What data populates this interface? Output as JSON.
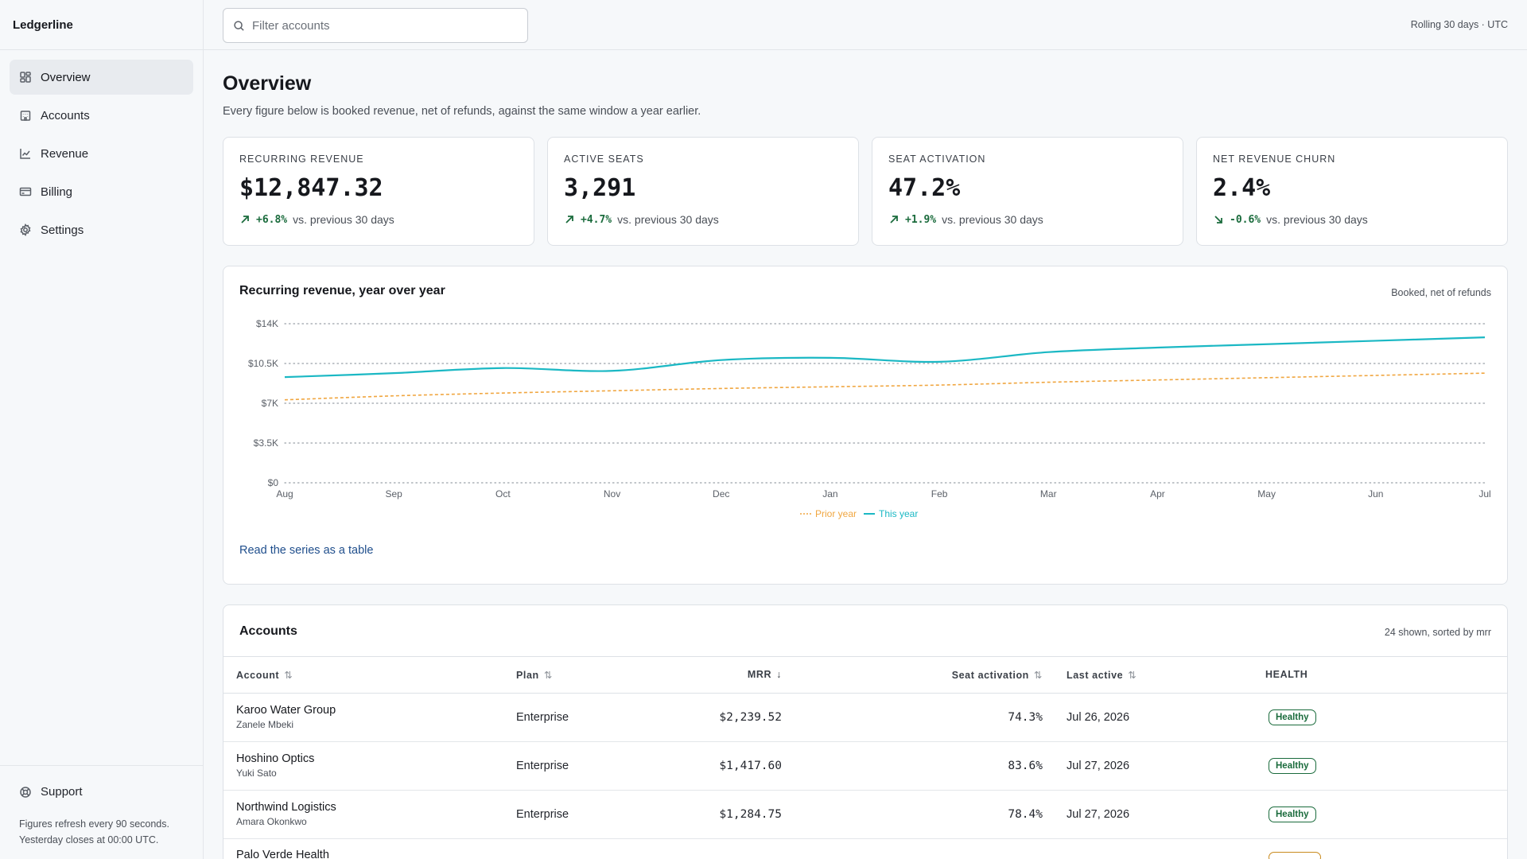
{
  "app": {
    "name": "Ledgerline"
  },
  "sidebar": {
    "items": [
      {
        "label": "Overview",
        "icon": "dashboard-icon",
        "active": true
      },
      {
        "label": "Accounts",
        "icon": "building-icon"
      },
      {
        "label": "Revenue",
        "icon": "line-chart-icon"
      },
      {
        "label": "Billing",
        "icon": "credit-card-icon"
      },
      {
        "label": "Settings",
        "icon": "gear-icon"
      }
    ],
    "support_label": "Support",
    "note_line1": "Figures refresh every 90 seconds.",
    "note_line2": "Yesterday closes at 00:00 UTC."
  },
  "topbar": {
    "search_placeholder": "Filter accounts",
    "window_label": "Rolling 30 days · UTC"
  },
  "page": {
    "title": "Overview",
    "subtitle": "Every figure below is booked revenue, net of refunds, against the same window a year earlier."
  },
  "kpis": [
    {
      "label": "RECURRING REVENUE",
      "value": "$12,847.32",
      "delta": "+6.8%",
      "direction": "up",
      "suffix": "vs. previous 30 days"
    },
    {
      "label": "ACTIVE SEATS",
      "value": "3,291",
      "delta": "+4.7%",
      "direction": "up",
      "suffix": "vs. previous 30 days"
    },
    {
      "label": "SEAT ACTIVATION",
      "value": "47.2%",
      "delta": "+1.9%",
      "direction": "up",
      "suffix": "vs. previous 30 days"
    },
    {
      "label": "NET REVENUE CHURN",
      "value": "2.4%",
      "delta": "-0.6%",
      "direction": "down",
      "suffix": "vs. previous 30 days"
    }
  ],
  "revenue_chart": {
    "title": "Recurring revenue, year over year",
    "note": "Booked, net of refunds",
    "link": "Read the series as a table",
    "colors": {
      "this_year": "#1bb8c4",
      "prior_year": "#f0a640"
    }
  },
  "chart_data": {
    "type": "line",
    "categories": [
      "Aug",
      "Sep",
      "Oct",
      "Nov",
      "Dec",
      "Jan",
      "Feb",
      "Mar",
      "Apr",
      "May",
      "Jun",
      "Jul"
    ],
    "y_ticks": [
      "$0",
      "$3.5K",
      "$7K",
      "$10.5K",
      "$14K"
    ],
    "ylim": [
      0,
      14000
    ],
    "grid": true,
    "legend": "bottom-center",
    "series": [
      {
        "name": "Prior year",
        "style": "dashed",
        "values": [
          7300,
          7650,
          7900,
          8100,
          8300,
          8450,
          8600,
          8850,
          9050,
          9250,
          9450,
          9650
        ]
      },
      {
        "name": "This year",
        "style": "solid",
        "values": [
          9300,
          9650,
          10100,
          9850,
          10800,
          11000,
          10650,
          11500,
          11900,
          12200,
          12500,
          12800
        ]
      }
    ]
  },
  "accounts": {
    "title": "Accounts",
    "note": "24 shown, sorted by mrr",
    "columns": {
      "account": "Account",
      "plan": "Plan",
      "mrr": "MRR",
      "activation": "Seat activation",
      "last_active": "Last active",
      "health": "HEALTH"
    },
    "rows": [
      {
        "name": "Karoo Water Group",
        "owner": "Zanele Mbeki",
        "plan": "Enterprise",
        "mrr": "$2,239.52",
        "activation": "74.3%",
        "last_active": "Jul 26, 2026",
        "health": "Healthy"
      },
      {
        "name": "Hoshino Optics",
        "owner": "Yuki Sato",
        "plan": "Enterprise",
        "mrr": "$1,417.60",
        "activation": "83.6%",
        "last_active": "Jul 27, 2026",
        "health": "Healthy"
      },
      {
        "name": "Northwind Logistics",
        "owner": "Amara Okonkwo",
        "plan": "Enterprise",
        "mrr": "$1,284.75",
        "activation": "78.4%",
        "last_active": "Jul 27, 2026",
        "health": "Healthy"
      },
      {
        "name": "Palo Verde Health",
        "owner": "",
        "plan": "",
        "mrr": "",
        "activation": "",
        "last_active": "",
        "health": ""
      }
    ]
  }
}
